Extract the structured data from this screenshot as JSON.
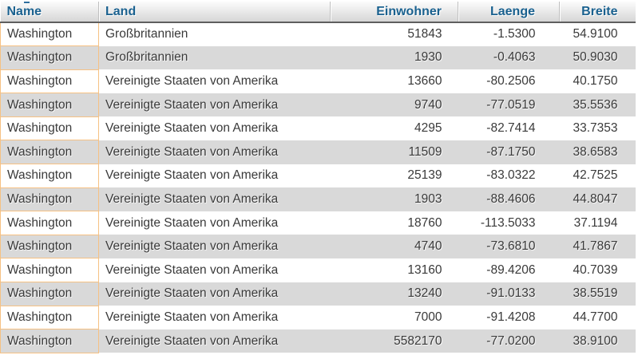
{
  "colors": {
    "header_text": "#1a618f",
    "header_gradient_top": "#fcfcfc",
    "header_gradient_bottom": "#d6d6d6",
    "header_bottom_border": "#5f5f5f",
    "body_text": "#3a3a3a",
    "stripe_row": "#d9d9d9",
    "highlight_column_border": "#f6c183"
  },
  "table": {
    "columns": [
      {
        "key": "name",
        "label": "Name",
        "align": "left"
      },
      {
        "key": "land",
        "label": "Land",
        "align": "left"
      },
      {
        "key": "einwohner",
        "label": "Einwohner",
        "align": "right"
      },
      {
        "key": "laenge",
        "label": "Laenge",
        "align": "right"
      },
      {
        "key": "breite",
        "label": "Breite",
        "align": "right"
      }
    ],
    "rows": [
      [
        "Washington",
        "Großbritannien",
        "51843",
        "-1.5300",
        "54.9100"
      ],
      [
        "Washington",
        "Großbritannien",
        "1930",
        "-0.4063",
        "50.9030"
      ],
      [
        "Washington",
        "Vereinigte Staaten von Amerika",
        "13660",
        "-80.2506",
        "40.1750"
      ],
      [
        "Washington",
        "Vereinigte Staaten von Amerika",
        "9740",
        "-77.0519",
        "35.5536"
      ],
      [
        "Washington",
        "Vereinigte Staaten von Amerika",
        "4295",
        "-82.7414",
        "33.7353"
      ],
      [
        "Washington",
        "Vereinigte Staaten von Amerika",
        "11509",
        "-87.1750",
        "38.6583"
      ],
      [
        "Washington",
        "Vereinigte Staaten von Amerika",
        "25139",
        "-83.0322",
        "42.7525"
      ],
      [
        "Washington",
        "Vereinigte Staaten von Amerika",
        "1903",
        "-88.4606",
        "44.8047"
      ],
      [
        "Washington",
        "Vereinigte Staaten von Amerika",
        "18760",
        "-113.5033",
        "37.1194"
      ],
      [
        "Washington",
        "Vereinigte Staaten von Amerika",
        "4740",
        "-73.6810",
        "41.7867"
      ],
      [
        "Washington",
        "Vereinigte Staaten von Amerika",
        "13160",
        "-89.4206",
        "40.7039"
      ],
      [
        "Washington",
        "Vereinigte Staaten von Amerika",
        "13240",
        "-91.0133",
        "38.5519"
      ],
      [
        "Washington",
        "Vereinigte Staaten von Amerika",
        "7000",
        "-91.4208",
        "44.7700"
      ],
      [
        "Washington",
        "Vereinigte Staaten von Amerika",
        "5582170",
        "-77.0200",
        "38.9100"
      ]
    ]
  }
}
